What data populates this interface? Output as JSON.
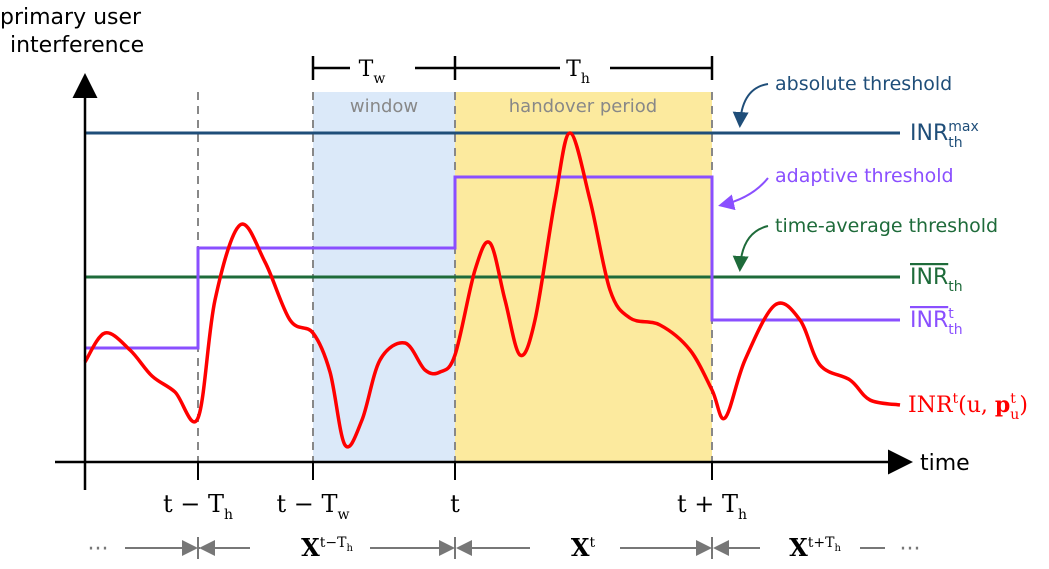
{
  "axes": {
    "y_label": [
      "primary user",
      "interference"
    ],
    "x_label": "time"
  },
  "regions": {
    "window": "window",
    "handover": "handover period"
  },
  "spans": [
    [
      {
        "t": "T"
      },
      {
        "t": "w",
        "pos": "sub"
      }
    ],
    [
      {
        "t": "T"
      },
      {
        "t": "h",
        "pos": "sub"
      }
    ]
  ],
  "annotations": [
    "absolute threshold",
    "adaptive threshold",
    "time-average threshold"
  ],
  "threshold_labels": [
    [
      {
        "t": "INR"
      },
      {
        "t": "max",
        "pos": "sup"
      },
      {
        "t": "th",
        "pos": "sub"
      }
    ],
    [
      {
        "t": "INR",
        "over": true
      },
      {
        "t": "th",
        "pos": "sub"
      }
    ],
    [
      {
        "t": "INR",
        "over": true
      },
      {
        "t": "t",
        "pos": "sup"
      },
      {
        "t": "th",
        "pos": "sub"
      }
    ]
  ],
  "curve_label": [
    {
      "t": "INR"
    },
    {
      "t": "t",
      "pos": "sup"
    },
    {
      "t": "(u, "
    },
    {
      "t": "p"
    },
    {
      "t": "t",
      "pos": "sup"
    },
    {
      "t": "u",
      "pos": "sub"
    },
    {
      "t": ")"
    }
  ],
  "time_marks": [
    [
      {
        "t": "t − T"
      },
      {
        "t": "h",
        "pos": "sub"
      }
    ],
    [
      {
        "t": "t − T"
      },
      {
        "t": "w",
        "pos": "sub"
      }
    ],
    [
      {
        "t": "t"
      }
    ],
    [
      {
        "t": "t + T"
      },
      {
        "t": "h",
        "pos": "sub"
      }
    ]
  ],
  "blocks": [
    [
      {
        "t": "X"
      },
      {
        "t": "t−T",
        "pos": "sup"
      },
      {
        "t": "h",
        "pos": "supsub"
      }
    ],
    [
      {
        "t": "X"
      },
      {
        "t": "t",
        "pos": "sup"
      }
    ],
    [
      {
        "t": "X"
      },
      {
        "t": "t+T",
        "pos": "sup"
      },
      {
        "t": "h",
        "pos": "supsub"
      }
    ]
  ],
  "ellipsis": [
    "···",
    "···"
  ]
}
